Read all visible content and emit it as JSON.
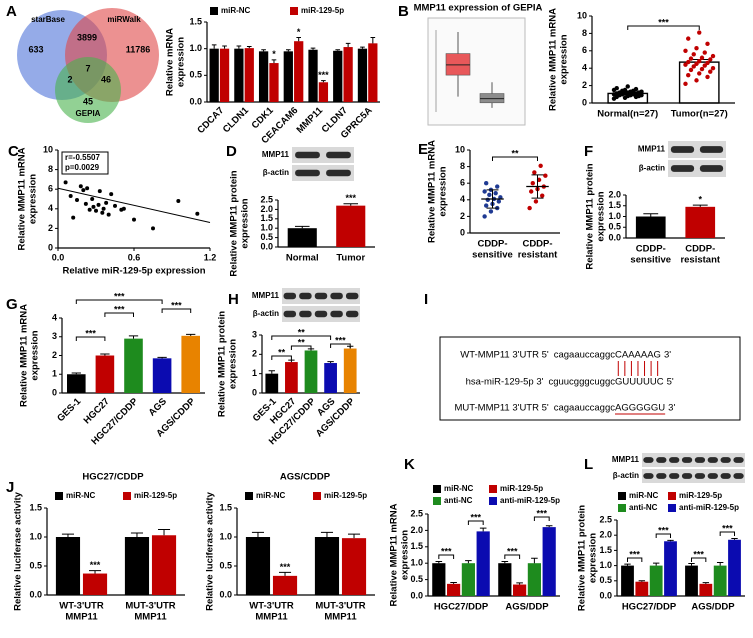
{
  "chart_data": [
    {
      "type": "venn",
      "panel": "A",
      "sets": [
        {
          "name": "starBase",
          "color": "#4f73d9"
        },
        {
          "name": "miRWalk",
          "color": "#e04848"
        },
        {
          "name": "GEPIA",
          "color": "#49b34c"
        }
      ],
      "regions": [
        633,
        3899,
        11786,
        2,
        7,
        46,
        45
      ]
    },
    {
      "type": "bar",
      "categories": [
        "CDCA7",
        "CLDN1",
        "CDK1",
        "CEACAM6",
        "MMP11",
        "CLDN7",
        "GPRC5A"
      ],
      "series": [
        {
          "name": "miR-NC",
          "color": "#000000",
          "values": [
            1.0,
            1.0,
            0.95,
            0.95,
            0.98,
            0.96,
            1.0
          ],
          "errors": [
            0.07,
            0.05,
            0.03,
            0.03,
            0.03,
            0.02,
            0.03
          ]
        },
        {
          "name": "miR-129-5p",
          "color": "#c00000",
          "values": [
            1.0,
            1.01,
            0.73,
            1.14,
            0.37,
            1.03,
            1.1
          ],
          "errors": [
            0.05,
            0.03,
            0.06,
            0.07,
            0.03,
            0.07,
            0.11
          ],
          "sig": [
            null,
            null,
            "*",
            "*",
            "***",
            null,
            null
          ]
        }
      ],
      "ylim": [
        0,
        1.5
      ],
      "yticks": [
        {
          "value": 0,
          "label": "0.0"
        },
        0.5,
        {
          "value": 1,
          "label": "1.0"
        },
        1.5
      ],
      "ylabel": [
        "Relative mRNA",
        "expression"
      ]
    },
    {
      "type": "boxplot",
      "panel": "B",
      "title": "MMP11 expression of GEPIA",
      "ylim": [
        0,
        8
      ],
      "series": [
        {
          "color": "#e8585a",
          "values": [
            1.5,
            3.6,
            4.6,
            5.7,
            7.8
          ]
        },
        {
          "color": "#8c8c8c",
          "values": [
            0.4,
            0.9,
            1.3,
            1.8,
            2.9
          ]
        }
      ]
    },
    {
      "type": "bar",
      "bar_style": "outline",
      "categories": [
        "Normal(n=27)",
        "Tumor(n=27)"
      ],
      "values": [
        1.1,
        4.7
      ],
      "errors": [
        0.1,
        0.3
      ],
      "colors": [
        "#000000",
        "#c00000"
      ],
      "points": [
        [
          0.5,
          0.6,
          0.7,
          0.7,
          0.8,
          0.8,
          0.9,
          0.9,
          0.9,
          1.0,
          1.0,
          1.0,
          1.1,
          1.1,
          1.1,
          1.2,
          1.2,
          1.2,
          1.3,
          1.3,
          1.4,
          1.4,
          1.5,
          1.5,
          1.6,
          1.7,
          1.9
        ],
        [
          2.2,
          2.6,
          3.0,
          3.2,
          3.4,
          3.6,
          3.8,
          3.9,
          4.0,
          4.2,
          4.3,
          4.4,
          4.5,
          4.6,
          4.7,
          4.8,
          5.0,
          5.1,
          5.2,
          5.4,
          5.6,
          5.8,
          6.0,
          6.3,
          6.8,
          7.4,
          8.1
        ]
      ],
      "ylim": [
        0,
        10
      ],
      "yticks": [
        0,
        2,
        4,
        6,
        8,
        10
      ],
      "ylabel": [
        "Relative MMP11 mRNA",
        "expression"
      ],
      "brackets": [
        "***"
      ]
    },
    {
      "type": "scatter",
      "panel": "C",
      "color": "#000000",
      "x": [
        0.08,
        0.06,
        0.1,
        0.12,
        0.15,
        0.18,
        0.2,
        0.22,
        0.23,
        0.25,
        0.27,
        0.28,
        0.3,
        0.32,
        0.33,
        0.35,
        0.36,
        0.38,
        0.4,
        0.42,
        0.45,
        0.5,
        0.52,
        0.6,
        0.75,
        0.95,
        1.1
      ],
      "y": [
        8.6,
        6.7,
        5.3,
        3.1,
        4.9,
        6.3,
        5.9,
        4.5,
        6.1,
        3.9,
        5.0,
        4.2,
        3.8,
        4.4,
        5.8,
        3.6,
        4.0,
        4.6,
        3.4,
        5.5,
        4.3,
        3.9,
        4.0,
        2.9,
        2.0,
        4.8,
        3.5
      ],
      "fit": {
        "x": [
          0,
          1.2
        ],
        "y": [
          6.1,
          2.6
        ]
      },
      "xlim": [
        0,
        1.2
      ],
      "xticks": [
        {
          "value": 0,
          "label": "0.0"
        },
        0.6,
        1.2
      ],
      "ylim": [
        0,
        10
      ],
      "yticks": [
        0,
        2,
        4,
        6,
        8,
        10
      ],
      "xlabel": "Relative miR-129-5p expression",
      "ylabel": [
        "Relative MMP11 mRNA",
        "expression"
      ],
      "annotations": [
        "r=-0.5507",
        "p=0.0029"
      ]
    },
    {
      "type": "bar",
      "panel": "D",
      "blot_labels": [
        "MMP11",
        "β-actin"
      ],
      "categories": [
        "Normal",
        "Tumor"
      ],
      "values": [
        1.0,
        2.2
      ],
      "errors": [
        0.1,
        0.1
      ],
      "colors": [
        "#000000",
        "#c00000"
      ],
      "sig": [
        null,
        "***"
      ],
      "ylim": [
        0,
        2.5
      ],
      "yticks": [
        {
          "value": 0,
          "label": "0.0"
        },
        0.5,
        {
          "value": 1,
          "label": "1.0"
        },
        1.5,
        {
          "value": 2,
          "label": "2.0"
        },
        2.5
      ],
      "ylabel": [
        "Relative MMP11 protein",
        "expression"
      ]
    },
    {
      "type": "dotplot",
      "panel": "E",
      "categories": [
        [
          "CDDP-",
          "sensitive"
        ],
        [
          "CDDP-",
          "resistant"
        ]
      ],
      "points": [
        [
          2.0,
          2.6,
          3.0,
          3.3,
          3.5,
          3.8,
          4.0,
          4.1,
          4.3,
          4.6,
          4.8,
          5.0,
          5.2,
          5.6,
          6.0
        ],
        [
          3.0,
          3.8,
          4.5,
          5.0,
          5.3,
          5.6,
          6.0,
          6.4,
          6.9,
          7.3,
          8.1
        ]
      ],
      "means": [
        4.1,
        5.6
      ],
      "sds": [
        1.1,
        1.4
      ],
      "colors": [
        "#1f3a93",
        "#c00000"
      ],
      "ylim": [
        0,
        10
      ],
      "yticks": [
        0,
        2,
        4,
        6,
        8,
        10
      ],
      "ylabel": [
        "Relative MMP11 mRNA",
        "expression"
      ],
      "brackets": [
        "**"
      ]
    },
    {
      "type": "bar",
      "panel": "F",
      "blot_labels": [
        "MMP11",
        "β-actin"
      ],
      "categories": [
        [
          "CDDP-",
          "sensitive"
        ],
        [
          "CDDP-",
          "resistant"
        ]
      ],
      "values": [
        1.0,
        1.45
      ],
      "errors": [
        0.13,
        0.08
      ],
      "colors": [
        "#000000",
        "#c00000"
      ],
      "sig": [
        null,
        "*"
      ],
      "ylim": [
        0,
        2
      ],
      "yticks": [
        {
          "value": 0,
          "label": "0.0"
        },
        0.5,
        {
          "value": 1,
          "label": "1.0"
        },
        1.5,
        {
          "value": 2,
          "label": "2.0"
        }
      ],
      "ylabel": [
        "Relative MMP11 protein",
        "expression"
      ]
    },
    {
      "type": "bar",
      "panel": "G",
      "categories": [
        "GES-1",
        "HGC27",
        "HGC27/CDDP",
        "AGS",
        "AGS/CDDP"
      ],
      "values": [
        1.0,
        2.0,
        2.9,
        1.85,
        3.05
      ],
      "errors": [
        0.07,
        0.08,
        0.15,
        0.05,
        0.08
      ],
      "colors": [
        "#000000",
        "#c00000",
        "#1e8b1e",
        "#0b0bb0",
        "#e88300"
      ],
      "ylim": [
        0,
        4
      ],
      "yticks": [
        0,
        1,
        2,
        3,
        4
      ],
      "ylabel": [
        "Relative MMP11 mRNA",
        "expression"
      ],
      "brackets": [
        "***",
        "***",
        "***",
        "***"
      ]
    },
    {
      "type": "bar",
      "panel": "H",
      "blot_labels": [
        "MMP11",
        "β-actin"
      ],
      "categories": [
        "GES-1",
        "HGC27",
        "HGC27/CDDP",
        "AGS",
        "AGS/CDDP"
      ],
      "values": [
        1.0,
        1.6,
        2.2,
        1.55,
        2.3
      ],
      "errors": [
        0.15,
        0.1,
        0.08,
        0.07,
        0.12
      ],
      "colors": [
        "#000000",
        "#c00000",
        "#1e8b1e",
        "#0b0bb0",
        "#e88300"
      ],
      "ylim": [
        0,
        3
      ],
      "yticks": [
        0,
        1,
        2,
        3
      ],
      "ylabel": [
        "Relative MMP11 protein",
        "expression"
      ],
      "brackets": [
        "**",
        "**",
        "**",
        "***"
      ]
    },
    {
      "type": "sequence",
      "panel": "I",
      "rows": [
        {
          "label": "WT-MMP11 3'UTR 5'",
          "seq": "cagaauccaggc",
          "site": "CAAAAAG",
          "end": "3'"
        },
        {
          "label": "hsa-miR-129-5p 3'",
          "seq": "cguucgggcuggc",
          "site": "GUUUUUC",
          "end": "5'"
        },
        {
          "label": "MUT-MMP11 3'UTR 5'",
          "seq": "cagaauccaggc",
          "site": "AGGGGGU",
          "end": "3'"
        }
      ]
    },
    {
      "type": "bar",
      "panel": "J",
      "title": "HGC27/CDDP",
      "categories": [
        [
          "WT-3'UTR",
          "MMP11"
        ],
        [
          "MUT-3'UTR",
          "MMP11"
        ]
      ],
      "series": [
        {
          "name": "miR-NC",
          "color": "#000000",
          "values": [
            1.0,
            1.0
          ],
          "errors": [
            0.05,
            0.07
          ]
        },
        {
          "name": "miR-129-5p",
          "color": "#c00000",
          "values": [
            0.37,
            1.03
          ],
          "errors": [
            0.05,
            0.1
          ],
          "sig": [
            "***",
            null
          ]
        }
      ],
      "ylim": [
        0,
        1.5
      ],
      "yticks": [
        {
          "value": 0,
          "label": "0.0"
        },
        0.5,
        {
          "value": 1,
          "label": "1.0"
        },
        1.5
      ],
      "ylabel": [
        "Relative luciferase activity"
      ]
    },
    {
      "type": "bar",
      "title": "AGS/CDDP",
      "categories": [
        [
          "WT-3'UTR",
          "MMP11"
        ],
        [
          "MUT-3'UTR",
          "MMP11"
        ]
      ],
      "series": [
        {
          "name": "miR-NC",
          "color": "#000000",
          "values": [
            1.0,
            1.0
          ],
          "errors": [
            0.08,
            0.08
          ]
        },
        {
          "name": "miR-129-5p",
          "color": "#c00000",
          "values": [
            0.33,
            0.98
          ],
          "errors": [
            0.06,
            0.07
          ],
          "sig": [
            "***",
            null
          ]
        }
      ],
      "ylim": [
        0,
        1.5
      ],
      "yticks": [
        {
          "value": 0,
          "label": "0.0"
        },
        0.5,
        {
          "value": 1,
          "label": "1.0"
        },
        1.5
      ],
      "ylabel": [
        "Relative luciferase activity"
      ]
    },
    {
      "type": "bar",
      "panel": "K",
      "categories": [
        "HGC27/DDP",
        "AGS/DDP"
      ],
      "series": [
        {
          "name": "miR-NC",
          "color": "#000000",
          "values": [
            1.0,
            1.0
          ],
          "errors": [
            0.05,
            0.05
          ]
        },
        {
          "name": "miR-129-5p",
          "color": "#c00000",
          "values": [
            0.37,
            0.35
          ],
          "errors": [
            0.04,
            0.05
          ]
        },
        {
          "name": "anti-NC",
          "color": "#1e8b1e",
          "values": [
            1.0,
            1.0
          ],
          "errors": [
            0.08,
            0.15
          ]
        },
        {
          "name": "anti-miR-129-5p",
          "color": "#0b0bb0",
          "values": [
            1.97,
            2.1
          ],
          "errors": [
            0.1,
            0.04
          ]
        }
      ],
      "ylim": [
        0,
        2.5
      ],
      "yticks": [
        {
          "value": 0,
          "label": "0.0"
        },
        0.5,
        {
          "value": 1,
          "label": "1.0"
        },
        1.5,
        {
          "value": 2,
          "label": "2.0"
        },
        2.5
      ],
      "ylabel": [
        "Relative MMP11 mRNA",
        "expression"
      ],
      "brackets": [
        "***",
        "***",
        "***",
        "***"
      ]
    },
    {
      "type": "bar",
      "panel": "L",
      "blot_labels": [
        "MMP11",
        "β-actin"
      ],
      "categories": [
        "HGC27/DDP",
        "AGS/DDP"
      ],
      "series": [
        {
          "name": "miR-NC",
          "color": "#000000",
          "values": [
            1.0,
            1.0
          ],
          "errors": [
            0.05,
            0.07
          ]
        },
        {
          "name": "miR-129-5p",
          "color": "#c00000",
          "values": [
            0.47,
            0.4
          ],
          "errors": [
            0.03,
            0.04
          ]
        },
        {
          "name": "anti-NC",
          "color": "#1e8b1e",
          "values": [
            1.0,
            1.0
          ],
          "errors": [
            0.08,
            0.1
          ]
        },
        {
          "name": "anti-miR-129-5p",
          "color": "#0b0bb0",
          "values": [
            1.8,
            1.85
          ],
          "errors": [
            0.03,
            0.04
          ]
        }
      ],
      "ylim": [
        0,
        2.5
      ],
      "yticks": [
        {
          "value": 0,
          "label": "0.0"
        },
        0.5,
        {
          "value": 1,
          "label": "1.0"
        },
        1.5,
        {
          "value": 2,
          "label": "2.0"
        },
        2.5
      ],
      "ylabel": [
        "Relative MMP11 protein",
        "expression"
      ],
      "brackets": [
        "***",
        "***",
        "***",
        "***"
      ]
    }
  ]
}
